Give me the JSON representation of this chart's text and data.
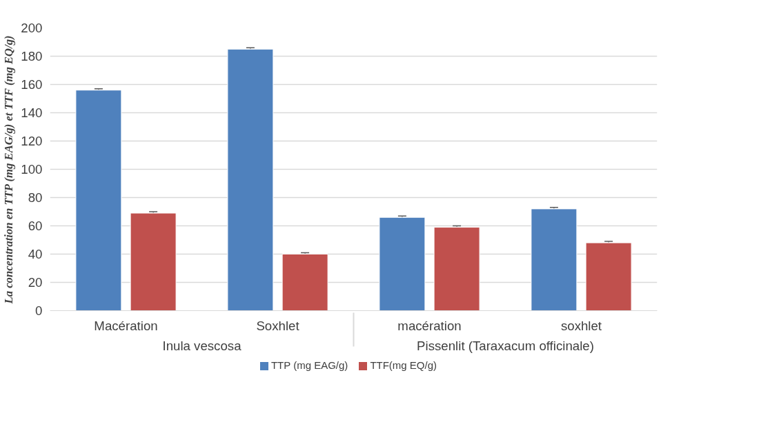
{
  "chart_data": {
    "type": "bar",
    "ylabel": "La concentration en TTP (mg EAG/g) et TTF (mg EQ/g)",
    "categories": [
      "Macération",
      "Soxhlet",
      "macération",
      "soxhlet"
    ],
    "annotations": [
      "Inula vescosa",
      "Pissenlit (Taraxacum officinale)"
    ],
    "series": [
      {
        "name": "TTP (mg EAG/g)",
        "color": "#4f81bd",
        "values": [
          156,
          185,
          66,
          72
        ],
        "errors": [
          1,
          1,
          1,
          1
        ]
      },
      {
        "name": "TTF(mg EQ/g)",
        "color": "#c0504d",
        "values": [
          69,
          40,
          59,
          48
        ],
        "errors": [
          1,
          1,
          1,
          1
        ]
      }
    ],
    "ylim": [
      0,
      200
    ],
    "yticks": [
      0,
      20,
      40,
      60,
      80,
      100,
      120,
      140,
      160,
      180,
      200
    ],
    "grid": "y",
    "legend": "bottom"
  }
}
